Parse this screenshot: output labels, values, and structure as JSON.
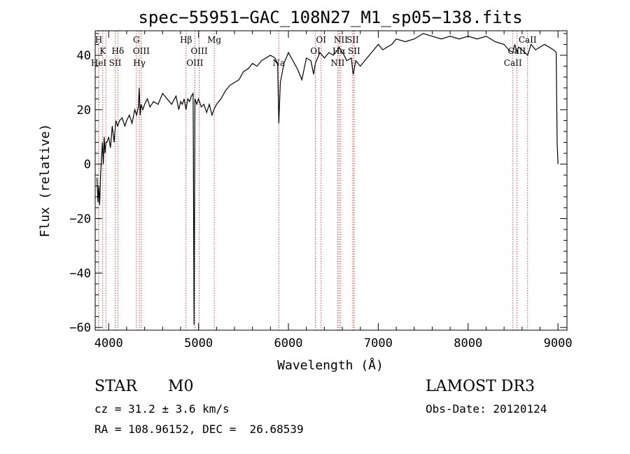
{
  "chart_data": {
    "type": "line",
    "title": "spec−55951−GAC_108N27_M1_sp05−138.fits",
    "xlabel": "Wavelength (Å)",
    "ylabel": "Flux (relative)",
    "xlim": [
      3850,
      9100
    ],
    "ylim": [
      -61,
      49
    ],
    "x_ticks": [
      4000,
      5000,
      6000,
      7000,
      8000,
      9000
    ],
    "y_ticks": [
      -60,
      -40,
      -20,
      0,
      20,
      40
    ],
    "y_tick_labels": [
      "−60",
      "−40",
      "−20",
      "0",
      "20",
      "40"
    ],
    "series": [
      {
        "name": "flux",
        "x": [
          3870,
          3880,
          3890,
          3900,
          3910,
          3920,
          3930,
          3940,
          3950,
          3960,
          3970,
          3980,
          4000,
          4020,
          4040,
          4060,
          4080,
          4100,
          4120,
          4150,
          4180,
          4200,
          4230,
          4260,
          4290,
          4310,
          4330,
          4340,
          4350,
          4360,
          4380,
          4400,
          4430,
          4460,
          4500,
          4550,
          4600,
          4650,
          4700,
          4750,
          4780,
          4800,
          4820,
          4840,
          4860,
          4880,
          4900,
          4920,
          4940,
          4950,
          4960,
          4980,
          5000,
          5030,
          5060,
          5090,
          5120,
          5150,
          5170,
          5200,
          5250,
          5300,
          5350,
          5400,
          5450,
          5500,
          5550,
          5600,
          5650,
          5700,
          5750,
          5800,
          5850,
          5880,
          5893,
          5910,
          5950,
          6000,
          6050,
          6100,
          6150,
          6200,
          6250,
          6280,
          6300,
          6350,
          6400,
          6450,
          6500,
          6550,
          6563,
          6580,
          6620,
          6650,
          6700,
          6720,
          6750,
          6800,
          6850,
          6900,
          6950,
          7000,
          7050,
          7100,
          7150,
          7200,
          7300,
          7400,
          7500,
          7600,
          7700,
          7800,
          7900,
          8000,
          8100,
          8200,
          8300,
          8400,
          8450,
          8498,
          8520,
          8542,
          8560,
          8600,
          8662,
          8700,
          8750,
          8800,
          8850,
          8900,
          8950,
          8980,
          8990,
          9000
        ],
        "values": [
          -5,
          -14,
          -8,
          -15,
          -4,
          2,
          8,
          0,
          10,
          4,
          8,
          8,
          10,
          6,
          14,
          8,
          16,
          14,
          16,
          17,
          14,
          16,
          18,
          15,
          20,
          18,
          21,
          28,
          18,
          22,
          20,
          22,
          24,
          21,
          23,
          22,
          26,
          24,
          22,
          25,
          20,
          23,
          22,
          24,
          20,
          24,
          23,
          25,
          26,
          -59,
          24,
          22,
          24,
          21,
          22,
          19,
          22,
          18,
          20,
          22,
          24,
          27,
          29,
          30,
          31,
          34,
          35,
          37,
          36,
          38,
          39,
          40,
          39,
          37,
          15,
          30,
          37,
          41,
          38,
          35,
          31,
          39,
          38,
          33,
          37,
          41,
          39,
          41,
          40,
          42,
          43,
          42,
          40,
          38,
          39,
          33,
          38,
          36,
          38,
          40,
          42,
          44,
          42,
          43,
          44,
          46,
          45,
          46,
          48,
          47,
          46,
          47,
          46,
          47,
          46,
          47,
          45,
          44,
          42,
          41,
          44,
          41,
          43,
          42,
          40,
          44,
          42,
          43,
          44,
          43,
          42,
          41,
          8,
          0
        ]
      }
    ],
    "emission_lines": [
      {
        "wavelength": 3889,
        "label": "H",
        "tier": 1
      },
      {
        "wavelength": 3934,
        "label": "K",
        "tier": 2
      },
      {
        "wavelength": 3889,
        "label": "HeI",
        "tier": 3
      },
      {
        "wavelength": 3969,
        "label": "",
        "tier": 3
      },
      {
        "wavelength": 4072,
        "label": "SII",
        "tier": 3
      },
      {
        "wavelength": 4102,
        "label": "Hδ",
        "tier": 2
      },
      {
        "wavelength": 4308,
        "label": "G",
        "tier": 1
      },
      {
        "wavelength": 4341,
        "label": "Hγ",
        "tier": 3
      },
      {
        "wavelength": 4363,
        "label": "OIII",
        "tier": 2
      },
      {
        "wavelength": 4861,
        "label": "Hβ",
        "tier": 1
      },
      {
        "wavelength": 4959,
        "label": "OIII",
        "tier": 3
      },
      {
        "wavelength": 5007,
        "label": "OIII",
        "tier": 2
      },
      {
        "wavelength": 5175,
        "label": "Mg",
        "tier": 1
      },
      {
        "wavelength": 5893,
        "label": "Na",
        "tier": 3
      },
      {
        "wavelength": 6300,
        "label": "OI",
        "tier": 2
      },
      {
        "wavelength": 6364,
        "label": "OI",
        "tier": 1
      },
      {
        "wavelength": 6548,
        "label": "NII",
        "tier": 3
      },
      {
        "wavelength": 6563,
        "label": "Hα",
        "tier": 2
      },
      {
        "wavelength": 6583,
        "label": "NII",
        "tier": 1
      },
      {
        "wavelength": 6716,
        "label": "SII",
        "tier": 1
      },
      {
        "wavelength": 6731,
        "label": "SII",
        "tier": 2
      },
      {
        "wavelength": 6731,
        "label": "",
        "tier": 3
      },
      {
        "wavelength": 8498,
        "label": "CaII",
        "tier": 3
      },
      {
        "wavelength": 8542,
        "label": "CaII",
        "tier": 2
      },
      {
        "wavelength": 8662,
        "label": "CaII",
        "tier": 1
      }
    ]
  },
  "info": {
    "class": "STAR",
    "subclass": "M0",
    "survey": "LAMOST DR3",
    "cz": "cz = 31.2 ± 3.6 km/s",
    "obs_date": "Obs-Date: 20120124",
    "coords": "RA = 108.96152, DEC =  26.68539"
  }
}
